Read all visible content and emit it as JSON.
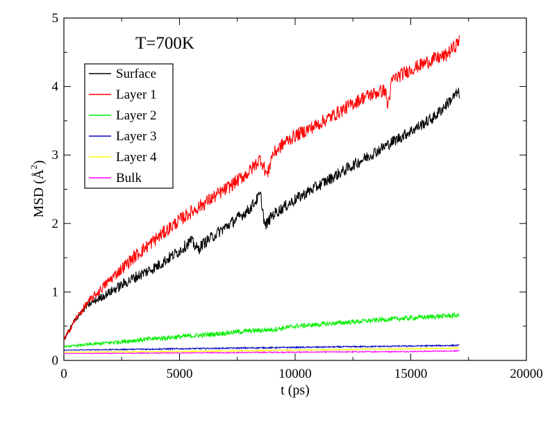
{
  "chart_data": {
    "type": "line",
    "annotation": "T=700K",
    "xlabel": "t (ps)",
    "ylabel_parts": {
      "prefix": "MSD (",
      "angstrom": "Å",
      "exponent": "2",
      "suffix": ")"
    },
    "xlim": [
      0,
      20000
    ],
    "ylim": [
      0,
      5
    ],
    "x_ticks": [
      0,
      5000,
      10000,
      15000,
      20000
    ],
    "y_ticks": [
      0,
      1,
      2,
      3,
      4,
      5
    ],
    "x_tick_labels": [
      "0",
      "5000",
      "10000",
      "15000",
      "20000"
    ],
    "y_tick_labels": [
      "0",
      "1",
      "2",
      "3",
      "4",
      "5"
    ],
    "legend_position": "top-left",
    "grid": false,
    "series": [
      {
        "name": "Surface",
        "color": "#000000",
        "x": [
          0,
          500,
          1000,
          2000,
          3000,
          4000,
          5000,
          5500,
          5800,
          6000,
          7000,
          8000,
          8500,
          8700,
          9000,
          10000,
          11000,
          12000,
          13000,
          14000,
          15000,
          16000,
          17000,
          17100
        ],
        "y": [
          0.3,
          0.6,
          0.8,
          1.0,
          1.2,
          1.37,
          1.6,
          1.75,
          1.62,
          1.7,
          1.95,
          2.2,
          2.42,
          1.95,
          2.12,
          2.35,
          2.55,
          2.75,
          2.95,
          3.15,
          3.35,
          3.55,
          3.9,
          3.9
        ]
      },
      {
        "name": "Layer 1",
        "color": "#ff0000",
        "x": [
          0,
          500,
          1000,
          2000,
          3000,
          4000,
          5000,
          6000,
          7000,
          8000,
          8500,
          8800,
          9000,
          9600,
          10000,
          11000,
          12000,
          13000,
          13900,
          14000,
          14200,
          15000,
          16000,
          16500,
          17000,
          17100
        ],
        "y": [
          0.3,
          0.6,
          0.83,
          1.18,
          1.5,
          1.78,
          2.05,
          2.28,
          2.5,
          2.75,
          2.95,
          2.7,
          3.0,
          3.2,
          3.28,
          3.45,
          3.65,
          3.85,
          3.95,
          3.7,
          4.1,
          4.25,
          4.4,
          4.45,
          4.62,
          4.7
        ]
      },
      {
        "name": "Layer 2",
        "color": "#00ee00",
        "x": [
          0,
          2000,
          4000,
          6000,
          8000,
          9000,
          10000,
          12000,
          14000,
          16000,
          17100
        ],
        "y": [
          0.2,
          0.26,
          0.32,
          0.37,
          0.43,
          0.45,
          0.5,
          0.55,
          0.6,
          0.64,
          0.66
        ]
      },
      {
        "name": "Layer 3",
        "color": "#0000bb",
        "x": [
          0,
          5000,
          10000,
          15000,
          17100
        ],
        "y": [
          0.15,
          0.17,
          0.19,
          0.21,
          0.22
        ]
      },
      {
        "name": "Layer 4",
        "color": "#ffff00",
        "x": [
          0,
          5000,
          10000,
          15000,
          17100
        ],
        "y": [
          0.12,
          0.13,
          0.15,
          0.17,
          0.18
        ]
      },
      {
        "name": "Bulk",
        "color": "#ff00ff",
        "x": [
          0,
          5000,
          10000,
          15000,
          17100
        ],
        "y": [
          0.1,
          0.11,
          0.12,
          0.13,
          0.14
        ]
      }
    ]
  }
}
